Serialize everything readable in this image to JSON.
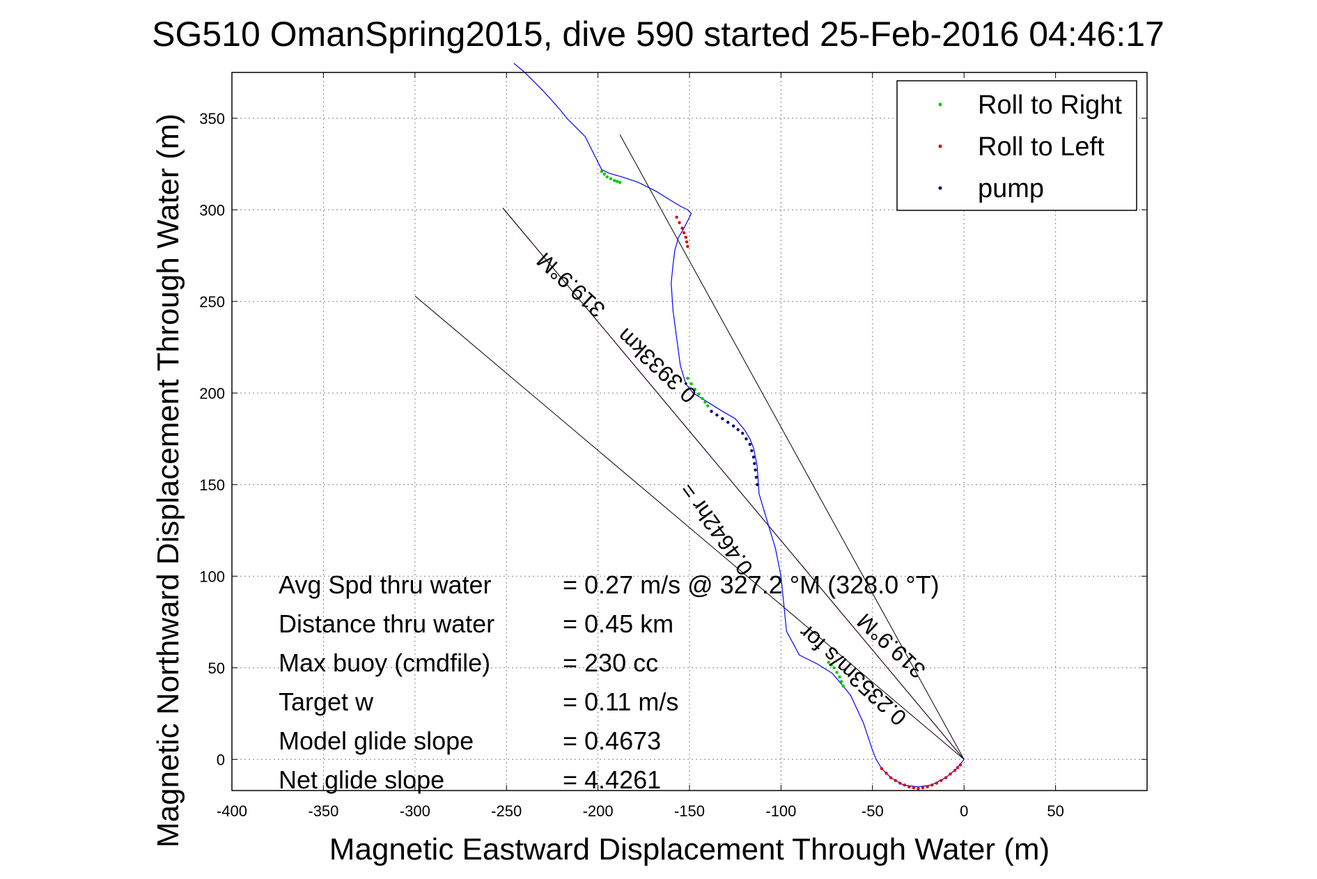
{
  "chart_data": {
    "type": "line",
    "title": "SG510 OmanSpring2015, dive 590 started 25-Feb-2016 04:46:17",
    "xlabel": "Magnetic Eastward Displacement Through Water (m)",
    "ylabel": "Magnetic Northward Displacement Through Water (m)",
    "xlim": [
      -400,
      100
    ],
    "ylim": [
      -17,
      375
    ],
    "xticks": [
      -400,
      -350,
      -300,
      -250,
      -200,
      -150,
      -100,
      -50,
      0,
      50
    ],
    "yticks": [
      0,
      50,
      100,
      150,
      200,
      250,
      300,
      350
    ],
    "grid": true,
    "legend_position": "top-right",
    "legend": [
      {
        "label": "Roll to Right",
        "color": "#00c800"
      },
      {
        "label": "Roll to Left",
        "color": "#dc0000"
      },
      {
        "label": "pump",
        "color": "#000080"
      }
    ],
    "track": {
      "name": "track",
      "color": "#0000ff",
      "x": [
        0,
        -4,
        -10,
        -18,
        -25,
        -33,
        -40,
        -45,
        -48,
        -50,
        -55,
        -62,
        -66,
        -72,
        -80,
        -90,
        -97,
        -100,
        -103,
        -106,
        -109,
        -112,
        -113,
        -115,
        -117,
        -120,
        -125,
        -132,
        -140,
        -148,
        -152,
        -155,
        -157,
        -159,
        -160,
        -159,
        -158,
        -156,
        -153,
        -150,
        -149,
        -151,
        -155,
        -160,
        -168,
        -178,
        -187,
        -194,
        -198,
        -202,
        -207,
        -212,
        -217,
        -221,
        -230,
        -240,
        -246
      ],
      "y": [
        0,
        -5,
        -10,
        -14,
        -15,
        -14,
        -10,
        -5,
        0,
        5,
        20,
        35,
        40,
        47,
        52,
        57,
        70,
        100,
        115,
        125,
        135,
        145,
        160,
        170,
        175,
        180,
        186,
        190,
        195,
        200,
        205,
        215,
        230,
        245,
        260,
        270,
        278,
        285,
        290,
        296,
        298,
        300,
        302,
        305,
        310,
        315,
        318,
        320,
        322,
        330,
        340,
        345,
        350,
        355,
        365,
        375,
        380
      ]
    },
    "roll_right_segments": [
      {
        "x": [
          -74,
          -71,
          -68,
          -66
        ],
        "y": [
          53,
          50,
          45,
          40
        ]
      },
      {
        "x": [
          -198,
          -195,
          -191,
          -188
        ],
        "y": [
          321,
          318,
          316,
          315
        ]
      },
      {
        "x": [
          -151,
          -147,
          -143,
          -140
        ],
        "y": [
          208,
          202,
          197,
          193
        ]
      }
    ],
    "roll_left_segments": [
      {
        "x": [
          -45,
          -40,
          -35,
          -30,
          -25,
          -20,
          -15,
          -10,
          -5,
          -2
        ],
        "y": [
          -5,
          -10,
          -13,
          -15,
          -16,
          -15,
          -13,
          -10,
          -6,
          -3
        ]
      },
      {
        "x": [
          -157,
          -154,
          -152,
          -151
        ],
        "y": [
          296,
          290,
          285,
          280
        ]
      }
    ],
    "pump_segments": [
      {
        "x": [
          -138,
          -132,
          -126,
          -121,
          -117,
          -115,
          -114,
          -113
        ],
        "y": [
          190,
          186,
          182,
          178,
          172,
          165,
          158,
          150
        ]
      }
    ],
    "heading_lines": [
      {
        "x": [
          0,
          -188
        ],
        "y": [
          0,
          341
        ]
      },
      {
        "x": [
          0,
          -300
        ],
        "y": [
          0,
          253
        ]
      },
      {
        "x": [
          0,
          -252
        ],
        "y": [
          0,
          301
        ],
        "color": "#ff00ff"
      },
      {
        "x": [
          0,
          -252
        ],
        "y": [
          0,
          301
        ]
      }
    ],
    "annotations": [
      {
        "text": "319.9°M",
        "x": -212,
        "y": 262,
        "angle": 42.6
      },
      {
        "text": "0.3933km",
        "x": -165,
        "y": 218,
        "angle": 42.6
      },
      {
        "text": "0.4642hr =",
        "x": -132,
        "y": 128,
        "angle": 54
      },
      {
        "text": "0.2353m/s for",
        "x": -58,
        "y": 49,
        "angle": 42.6
      },
      {
        "text": "319.9°M",
        "x": -37,
        "y": 65,
        "angle": 42.6
      }
    ],
    "stats": [
      {
        "label": "Avg Spd thru water",
        "value": "=  0.27 m/s @ 327.2 °M (328.0 °T)"
      },
      {
        "label": "Distance thru water",
        "value": "=  0.45 km"
      },
      {
        "label": "Max buoy (cmdfile)",
        "value": "= 230 cc"
      },
      {
        "label": "Target w",
        "value": "= 0.11 m/s"
      },
      {
        "label": "Model glide slope",
        "value": "= 0.4673"
      },
      {
        "label": "Net glide slope",
        "value": "= 4.4261"
      }
    ]
  }
}
